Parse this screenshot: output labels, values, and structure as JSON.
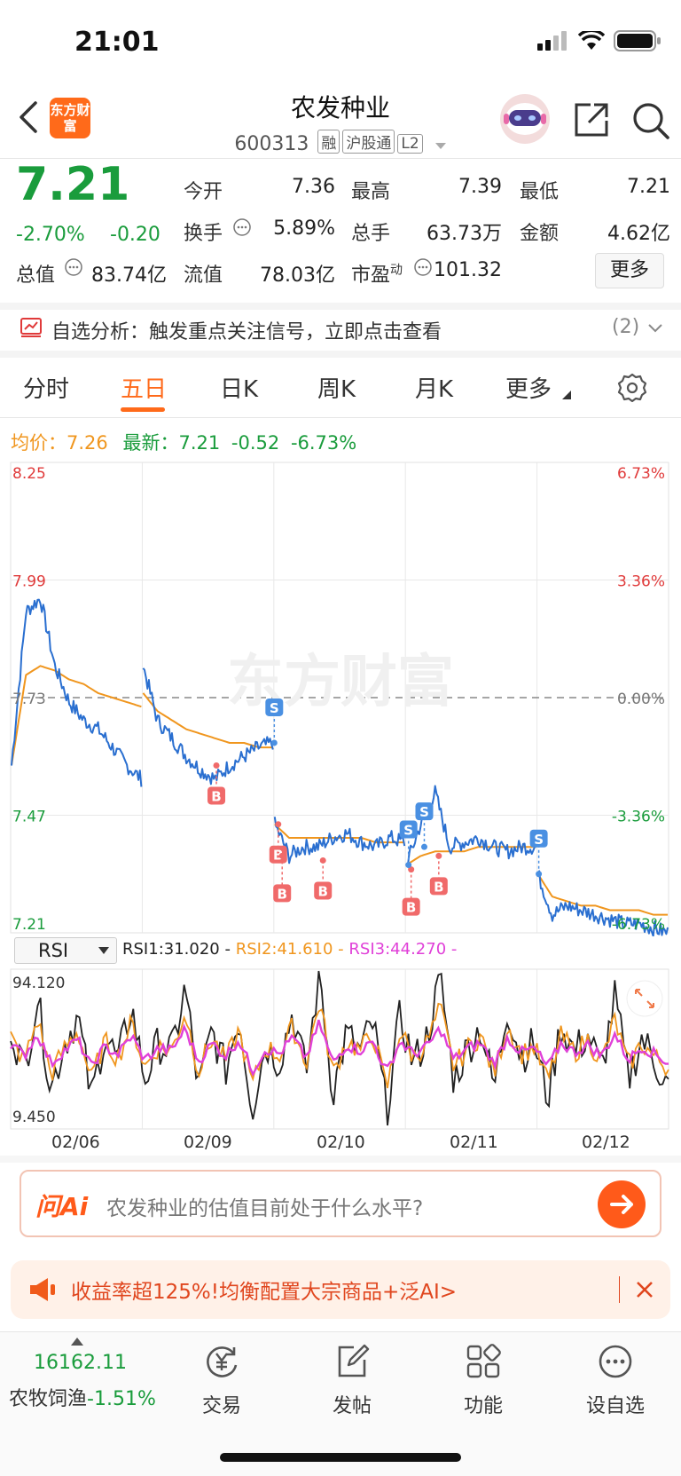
{
  "status": {
    "time": "21:01"
  },
  "header": {
    "logo_text": "东方财富",
    "title": "农发种业",
    "code": "600313",
    "tags": [
      "融",
      "沪股通",
      "L2"
    ]
  },
  "quote": {
    "price": "7.21",
    "change_pct": "-2.70%",
    "change": "-0.20",
    "stats": [
      {
        "label": "今开",
        "value": "7.36",
        "color": "green"
      },
      {
        "label": "最高",
        "value": "7.39",
        "color": "green"
      },
      {
        "label": "最低",
        "value": "7.21",
        "color": "green"
      },
      {
        "label": "换手",
        "value": "5.89%",
        "color": "normal"
      },
      {
        "label": "总手",
        "value": "63.73万",
        "color": "normal"
      },
      {
        "label": "金额",
        "value": "4.62亿",
        "color": "normal"
      },
      {
        "label": "总值",
        "value": "83.74亿",
        "color": "normal"
      },
      {
        "label": "流值",
        "value": "78.03亿",
        "color": "normal"
      },
      {
        "label": "市盈",
        "sup": "动",
        "value": "101.32",
        "color": "normal"
      }
    ],
    "more_label": "更多"
  },
  "alert": {
    "text": "自选分析：触发重点关注信号，立即点击查看",
    "count": "(2)"
  },
  "tabs": [
    {
      "label": "分时",
      "active": false
    },
    {
      "label": "五日",
      "active": true
    },
    {
      "label": "日K",
      "active": false
    },
    {
      "label": "周K",
      "active": false
    },
    {
      "label": "月K",
      "active": false
    },
    {
      "label": "更多",
      "active": false
    }
  ],
  "legend": {
    "avg_label": "均价：",
    "avg_value": "7.26",
    "last_label": "最新：",
    "last_value": "7.21",
    "last_change": "-0.52",
    "last_pct": "-6.73%"
  },
  "watermark": "东方财富",
  "chart_data": {
    "type": "line",
    "x": [
      "02/06",
      "02/09",
      "02/10",
      "02/11",
      "02/12"
    ],
    "price_axis": [
      "8.25",
      "7.99",
      "7.73",
      "7.47",
      "7.21"
    ],
    "pct_axis": [
      "6.73%",
      "3.36%",
      "0.00%",
      "-3.36%",
      "-6.73%"
    ],
    "ylim": [
      7.21,
      8.25
    ],
    "reference_price": 7.73,
    "series": [
      {
        "name": "最新",
        "color": "#2a6fd0",
        "days": [
          [
            7.58,
            7.92,
            7.95,
            7.8,
            7.72,
            7.68,
            7.66,
            7.62,
            7.58,
            7.55
          ],
          [
            7.8,
            7.68,
            7.64,
            7.6,
            7.57,
            7.55,
            7.58,
            7.6,
            7.62,
            7.63
          ],
          [
            7.45,
            7.38,
            7.4,
            7.4,
            7.42,
            7.43,
            7.41,
            7.4,
            7.42,
            7.41
          ],
          [
            7.36,
            7.45,
            7.52,
            7.4,
            7.41,
            7.42,
            7.4,
            7.39,
            7.4,
            7.4
          ],
          [
            7.34,
            7.25,
            7.27,
            7.26,
            7.25,
            7.24,
            7.23,
            7.23,
            7.22,
            7.21
          ]
        ]
      },
      {
        "name": "均价",
        "color": "#f0961e",
        "days": [
          [
            7.58,
            7.78,
            7.8,
            7.79,
            7.77,
            7.76,
            7.74,
            7.73,
            7.72,
            7.71
          ],
          [
            7.74,
            7.7,
            7.68,
            7.66,
            7.65,
            7.64,
            7.63,
            7.63,
            7.62,
            7.62
          ],
          [
            7.45,
            7.42,
            7.42,
            7.42,
            7.42,
            7.42,
            7.42,
            7.41,
            7.41,
            7.41
          ],
          [
            7.36,
            7.38,
            7.39,
            7.39,
            7.39,
            7.4,
            7.4,
            7.4,
            7.4,
            7.4
          ],
          [
            7.34,
            7.29,
            7.28,
            7.27,
            7.27,
            7.26,
            7.26,
            7.26,
            7.25,
            7.25
          ]
        ]
      }
    ],
    "signals": [
      {
        "type": "B",
        "day": 1,
        "pos": 0.55,
        "price": 7.58
      },
      {
        "type": "S",
        "day": 1,
        "pos": 0.99,
        "price": 7.63
      },
      {
        "type": "B",
        "day": 2,
        "pos": 0.02,
        "price": 7.45
      },
      {
        "type": "B",
        "day": 2,
        "pos": 0.05,
        "price": 7.38
      },
      {
        "type": "B",
        "day": 2,
        "pos": 0.36,
        "price": 7.37
      },
      {
        "type": "B",
        "day": 3,
        "pos": 0.03,
        "price": 7.35
      },
      {
        "type": "S",
        "day": 3,
        "pos": 0.01,
        "price": 7.36
      },
      {
        "type": "S",
        "day": 3,
        "pos": 0.13,
        "price": 7.4
      },
      {
        "type": "B",
        "day": 3,
        "pos": 0.24,
        "price": 7.38
      },
      {
        "type": "S",
        "day": 4,
        "pos": 0.0,
        "price": 7.34
      }
    ],
    "rsi": {
      "indicator": "RSI",
      "rsi1_label": "RSI1:31.020 -",
      "rsi2_label": "RSI2:41.610 -",
      "rsi3_label": "RSI3:44.270 -",
      "max_label": "94.120",
      "min_label": "9.450",
      "ylim": [
        9.45,
        94.12
      ],
      "series": [
        {
          "name": "RSI1",
          "color": "#222222",
          "values": [
            65,
            40,
            80,
            30,
            55,
            70,
            25,
            60,
            45,
            75,
            35,
            55,
            50,
            85,
            30,
            62,
            40,
            70,
            20,
            55,
            45,
            72,
            38,
            94,
            28,
            60,
            50,
            66,
            18,
            70,
            44,
            58,
            90,
            35,
            52,
            64,
            30,
            75,
            48,
            55,
            25,
            65,
            50,
            60,
            40,
            80,
            35,
            58,
            45,
            31
          ]
        },
        {
          "name": "RSI2",
          "color": "#f0961e",
          "values": [
            58,
            45,
            68,
            38,
            52,
            62,
            35,
            56,
            47,
            66,
            42,
            53,
            51,
            72,
            40,
            58,
            45,
            62,
            32,
            53,
            48,
            64,
            44,
            78,
            38,
            56,
            51,
            60,
            30,
            62,
            47,
            55,
            74,
            42,
            52,
            59,
            38,
            65,
            49,
            53,
            34,
            59,
            50,
            57,
            45,
            68,
            42,
            55,
            47,
            41.6
          ]
        },
        {
          "name": "RSI3",
          "color": "#e040d8",
          "values": [
            55,
            48,
            60,
            44,
            51,
            57,
            42,
            53,
            49,
            59,
            46,
            52,
            51,
            63,
            45,
            55,
            48,
            57,
            40,
            52,
            49,
            58,
            47,
            66,
            44,
            54,
            51,
            56,
            39,
            56,
            49,
            53,
            63,
            46,
            52,
            55,
            44,
            58,
            50,
            52,
            42,
            55,
            50,
            54,
            48,
            60,
            46,
            53,
            49,
            44.27
          ]
        }
      ]
    }
  },
  "ask": {
    "brand": "问Ai",
    "placeholder": "农发种业的估值目前处于什么水平?"
  },
  "ad": {
    "text": "收益率超125%!均衡配置大宗商品+泛AI>"
  },
  "bottom_nav": {
    "index_value": "16162.11",
    "index_name": "农牧饲渔",
    "index_change": "-1.51%",
    "items": [
      {
        "label": "交易",
        "icon": "yen-cycle-icon"
      },
      {
        "label": "发帖",
        "icon": "edit-icon"
      },
      {
        "label": "功能",
        "icon": "grid-icon"
      },
      {
        "label": "设自选",
        "icon": "more-dots-icon"
      }
    ]
  }
}
